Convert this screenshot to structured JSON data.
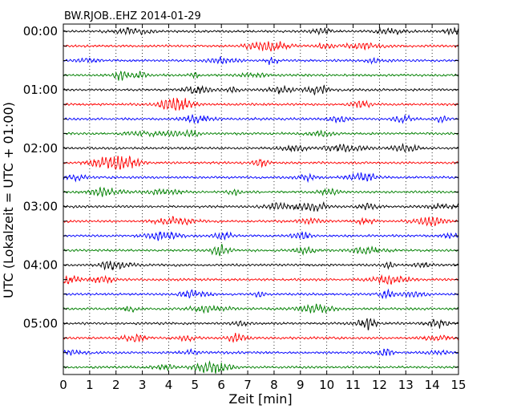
{
  "chart_data": {
    "type": "line",
    "title": "BW.RJOB..EHZ 2014-01-29",
    "xlabel": "Zeit  [min]",
    "ylabel": "UTC (Lokalzeit = UTC + 01:00)",
    "xlim": [
      0,
      15
    ],
    "x_ticks": [
      "0",
      "1",
      "2",
      "3",
      "4",
      "5",
      "6",
      "7",
      "8",
      "9",
      "10",
      "11",
      "12",
      "13",
      "14",
      "15"
    ],
    "y_tick_labels": [
      "00:00",
      "01:00",
      "02:00",
      "03:00",
      "04:00",
      "05:00"
    ],
    "trace_minutes": 15,
    "trace_count": 24,
    "trace_colors": [
      "#000000",
      "#ff0000",
      "#0000ff",
      "#008000"
    ],
    "grid": "vertical dotted at each minute",
    "series": [
      {
        "values": []
      }
    ]
  }
}
